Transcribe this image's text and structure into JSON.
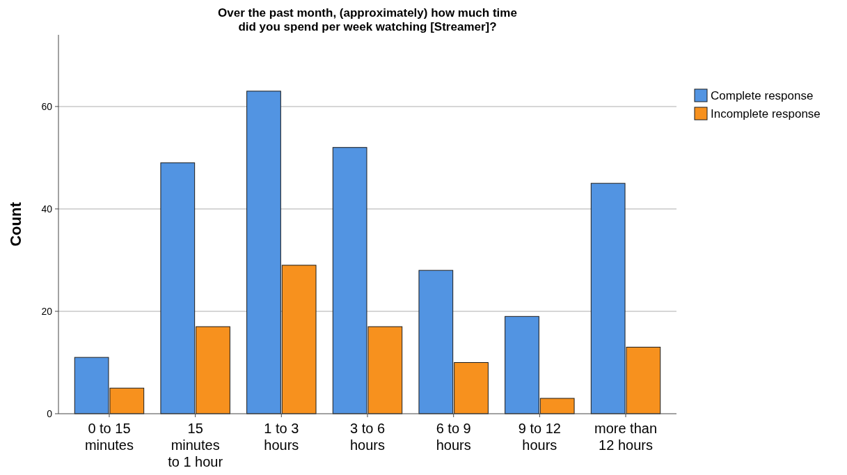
{
  "chart_data": {
    "type": "bar",
    "title": "Over the past month, (approximately) how much time\ndid you spend per week watching [Streamer]?",
    "ylabel": "Count",
    "categories": [
      "0 to 15 minutes",
      "15 minutes to 1 hour",
      "1 to 3 hours",
      "3 to 6 hours",
      "6 to 9 hours",
      "9 to 12 hours",
      "more than 12 hours"
    ],
    "series": [
      {
        "name": "Complete response",
        "color": "#5294e2",
        "values": [
          11,
          49,
          63,
          52,
          28,
          19,
          45
        ]
      },
      {
        "name": "Incomplete response",
        "color": "#f7911e",
        "values": [
          5,
          17,
          29,
          17,
          10,
          3,
          13
        ]
      }
    ],
    "ylim": [
      0,
      74
    ],
    "yticks": [
      0,
      20,
      40,
      60
    ],
    "grid": "y",
    "legend": "top right"
  }
}
